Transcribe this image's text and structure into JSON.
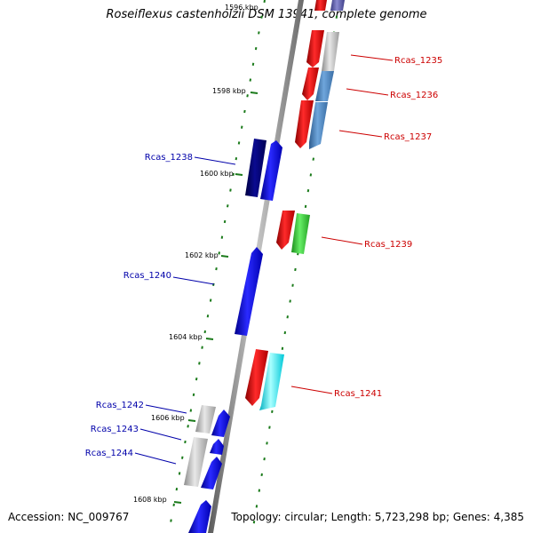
{
  "title": "Roseiflexus castenholzii DSM 13941, complete genome",
  "footer": {
    "accession": "Accession: NC_009767",
    "summary": "Topology: circular; Length: 5,723,298 bp; Genes: 4,385"
  },
  "kbp_labels": [
    "1596 kbp",
    "1598 kbp",
    "1600 kbp",
    "1602 kbp",
    "1604 kbp",
    "1606 kbp",
    "1608 kbp"
  ],
  "genes": [
    {
      "name": "Rcas_1235",
      "strand": "plus",
      "color": "#cc0000"
    },
    {
      "name": "Rcas_1236",
      "strand": "plus",
      "color": "#cc0000"
    },
    {
      "name": "Rcas_1237",
      "strand": "plus",
      "color": "#cc0000"
    },
    {
      "name": "Rcas_1238",
      "strand": "minus",
      "color": "#0000aa"
    },
    {
      "name": "Rcas_1239",
      "strand": "plus",
      "color": "#cc0000"
    },
    {
      "name": "Rcas_1240",
      "strand": "minus",
      "color": "#0000aa"
    },
    {
      "name": "Rcas_1241",
      "strand": "plus",
      "color": "#cc0000"
    },
    {
      "name": "Rcas_1242",
      "strand": "minus",
      "color": "#0000aa"
    },
    {
      "name": "Rcas_1243",
      "strand": "minus",
      "color": "#0000aa"
    },
    {
      "name": "Rcas_1244",
      "strand": "minus",
      "color": "#0000aa"
    }
  ]
}
